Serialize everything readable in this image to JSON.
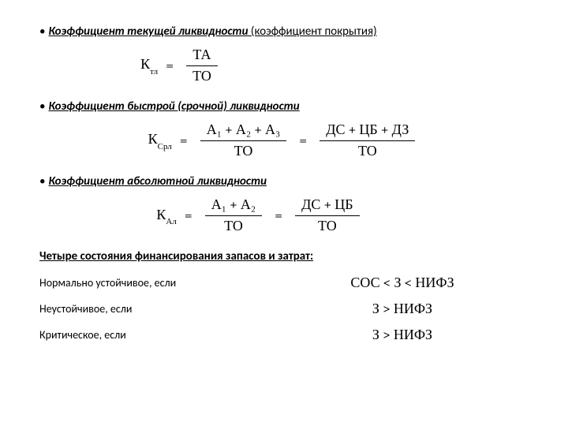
{
  "bullet": "•",
  "headings": {
    "h1_main": "Коэффициент текущей ликвидности",
    "h1_paren": " (коэффициент покрытия)",
    "h2": "Коэффициент быстрой (срочной) ликвидности",
    "h3": "Коэффициент абсолютной ликвидности"
  },
  "formulas": {
    "f1": {
      "lhs_base": "К",
      "lhs_sub": "тл",
      "num": "ТА",
      "den": "ТО"
    },
    "f2": {
      "lhs_base": "К",
      "lhs_sub": "Срл",
      "part1_num": "А₁ + А₂ + А₃",
      "part1_den": "ТО",
      "part2_num": "ДС + ЦБ + ДЗ",
      "part2_den": "ТО"
    },
    "f3": {
      "lhs_base": "К",
      "lhs_sub": "Ал",
      "part1_num": "А₁ + А₂",
      "part1_den": "ТО",
      "part2_num": "ДС +  ЦБ",
      "part2_den": "ТО"
    }
  },
  "section_title": "Четыре состояния финансирования запасов и затрат:",
  "states": {
    "s1": {
      "label": "Нормально устойчивое, если",
      "formula": "СОС < З < НИФЗ"
    },
    "s2": {
      "label": "Неустойчивое, если",
      "formula": "З > НИФЗ"
    },
    "s3": {
      "label": "Критическое, если",
      "formula": "З > НИФЗ"
    }
  },
  "eq_sign": "="
}
